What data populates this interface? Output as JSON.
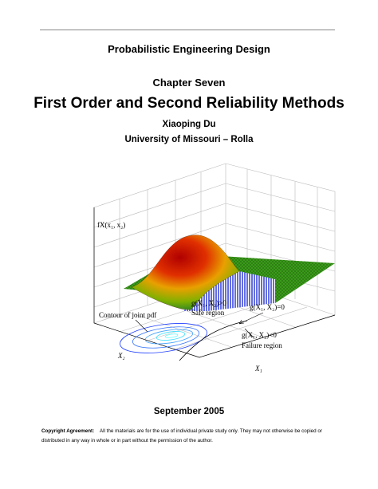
{
  "header": {
    "course": "Probabilistic Engineering Design",
    "chapter": "Chapter Seven",
    "title": "First Order and Second Reliability Methods",
    "author": "Xiaoping Du",
    "affiliation": "University of Missouri – Rolla"
  },
  "figure": {
    "labels": {
      "pdf": "fX(x₁, x₂)",
      "safe_condition": "g(X₁, X₂)>0",
      "safe_region": "Safe region",
      "limit_state": "g(X₁, X₂)=0",
      "contour": "Contour of joint pdf",
      "failure_condition": "g(X₁, X₂)<0",
      "failure_region": "Failure region",
      "x2_axis": "X₂",
      "x1_axis": "X₁"
    }
  },
  "date": "September 2005",
  "copyright": {
    "heading": "Copyright Agreement:",
    "text": "All the materials are for the use of individual private study only. They may not otherwise be copied or distributed in any way in whole or in part without the permission of the author."
  }
}
